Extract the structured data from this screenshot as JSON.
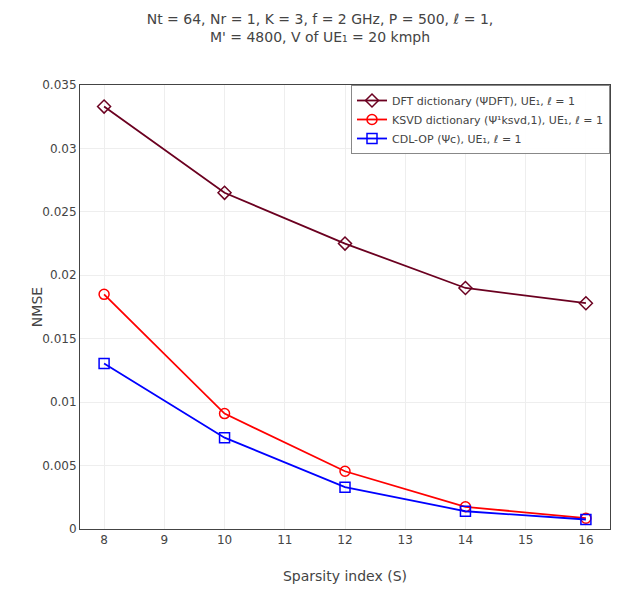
{
  "chart_data": {
    "type": "line",
    "title": "Nt = 64, Nr = 1, K = 3, f = 2 GHz, P = 500, ℓ = 1,\nM' = 4800, V of UE₁ = 20 kmph",
    "xlabel": "Sparsity index (S)",
    "ylabel": "NMSE",
    "x": [
      8,
      10,
      12,
      14,
      16
    ],
    "series": [
      {
        "name": "DFT dictionary (ΨDFT), UE₁, ℓ = 1",
        "color": "#6B0020",
        "marker": "diamond",
        "values": [
          0.0333,
          0.0265,
          0.0225,
          0.019,
          0.0178
        ]
      },
      {
        "name": "KSVD dictionary (Ψ¹ksvd,1), UE₁, ℓ = 1",
        "color": "#FF0000",
        "marker": "circle",
        "values": [
          0.0185,
          0.0091,
          0.00455,
          0.00175,
          0.00085
        ]
      },
      {
        "name": "CDL-OP (Ψc), UE₁, ℓ = 1",
        "color": "#0000FF",
        "marker": "square",
        "values": [
          0.01305,
          0.0072,
          0.0033,
          0.0014,
          0.00075
        ]
      }
    ],
    "xlim": [
      7.6,
      16.4
    ],
    "ylim": [
      0,
      0.035
    ],
    "xticks": [
      8,
      9,
      10,
      11,
      12,
      13,
      14,
      15,
      16
    ],
    "yticks": [
      0,
      0.005,
      0.01,
      0.015,
      0.02,
      0.025,
      0.03,
      0.035
    ],
    "grid": true,
    "legend": "upper right"
  }
}
